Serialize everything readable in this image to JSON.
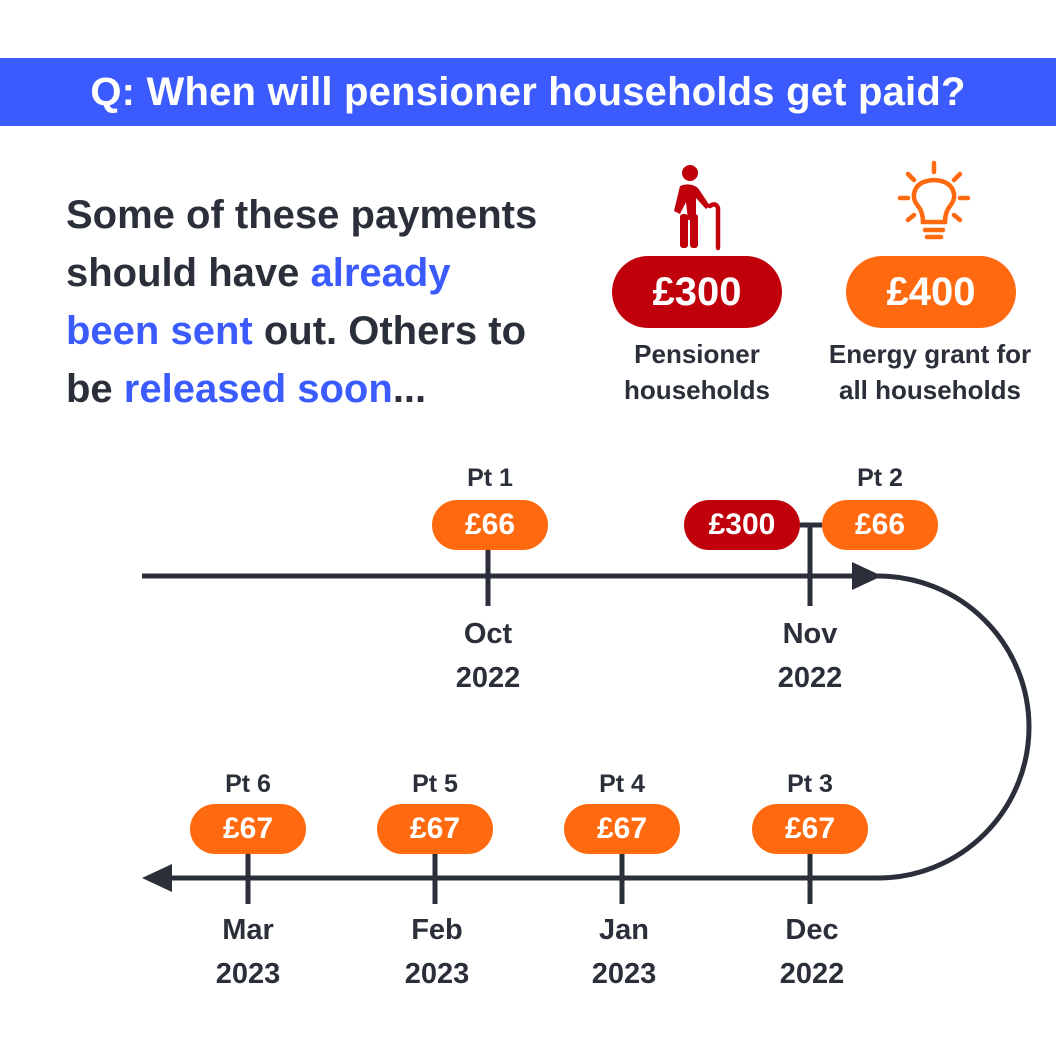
{
  "banner": {
    "title": "Q: When will pensioner households get paid?"
  },
  "intro": {
    "line1": "Some of these payments",
    "line2_a": "should have ",
    "line2_b": "already",
    "line3_a": "been sent",
    "line3_b": " out. Others to",
    "line4_a": "be ",
    "line4_b": "released soon",
    "line4_c": "..."
  },
  "legend": {
    "pensioner": {
      "amount": "£300",
      "line1": "Pensioner",
      "line2": "households",
      "icon": "elderly-person-icon",
      "color": "#c0000b"
    },
    "energy": {
      "amount": "£400",
      "line1": "Energy grant for",
      "line2": "all households",
      "icon": "lightbulb-icon",
      "color": "#ff6a10"
    }
  },
  "timeline": {
    "top": [
      {
        "pt": "Pt 1",
        "amount": "£66",
        "month": "Oct",
        "year": "2022"
      },
      {
        "pt": "Pt 2",
        "amount": "£66",
        "extra_amount": "£300",
        "month": "Nov",
        "year": "2022"
      }
    ],
    "bottom": [
      {
        "pt": "Pt 3",
        "amount": "£67",
        "month": "Dec",
        "year": "2022"
      },
      {
        "pt": "Pt 4",
        "amount": "£67",
        "month": "Jan",
        "year": "2023"
      },
      {
        "pt": "Pt 5",
        "amount": "£67",
        "month": "Feb",
        "year": "2023"
      },
      {
        "pt": "Pt 6",
        "amount": "£67",
        "month": "Mar",
        "year": "2023"
      }
    ]
  },
  "colors": {
    "banner": "#3b5bff",
    "orange": "#ff6a10",
    "red": "#c0000b",
    "line": "#2b2f3a"
  }
}
